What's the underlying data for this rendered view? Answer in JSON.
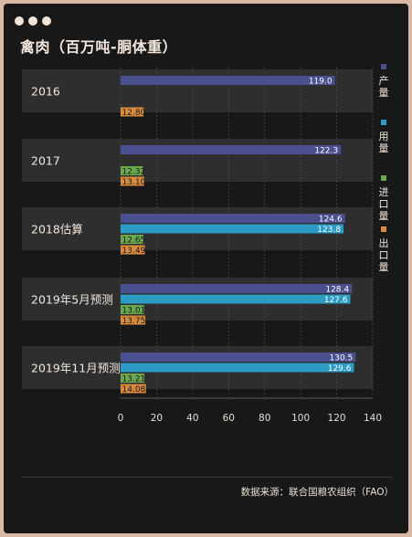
{
  "window": {
    "dot_color": "#f0e4da",
    "dot_count": 3
  },
  "title": "禽肉（百万吨-胴体重）",
  "source_note": "数据来源：联合国粮农组织（FAO）",
  "chart_data": {
    "type": "bar",
    "orientation": "horizontal",
    "title": "禽肉（百万吨-胴体重）",
    "categories": [
      "2016",
      "2017",
      "2018估算",
      "2019年5月预测",
      "2019年11月预测"
    ],
    "series": [
      {
        "name": "产量",
        "color": "#4a4f8f",
        "values": [
          119.0,
          122.3,
          124.6,
          128.4,
          130.5
        ],
        "labels": [
          "119.0",
          "122.3",
          "124.6",
          "128.4",
          "130.5"
        ]
      },
      {
        "name": "用量",
        "color": "#2c9cc4",
        "values": [
          null,
          null,
          123.8,
          127.6,
          129.6
        ],
        "labels": [
          "",
          "",
          "123.8",
          "127.6",
          "129.6"
        ]
      },
      {
        "name": "进口量",
        "color": "#6aa84f",
        "values": [
          null,
          12.32,
          12.65,
          13.01,
          13.21
        ],
        "labels": [
          "",
          "12.32",
          "12.65",
          "13.01",
          "13.21"
        ]
      },
      {
        "name": "出口量",
        "color": "#d98a3e",
        "values": [
          12.8,
          13.1,
          13.49,
          13.75,
          14.08
        ],
        "labels": [
          "12.80",
          "13.10",
          "13.49",
          "13.75",
          "14.08"
        ]
      }
    ],
    "xlim": [
      0,
      140
    ],
    "xticks": [
      "0",
      "20",
      "40",
      "60",
      "80",
      "100",
      "120",
      "140"
    ],
    "xlabel": "",
    "ylabel": "",
    "grid": true,
    "legend_position": "right"
  }
}
